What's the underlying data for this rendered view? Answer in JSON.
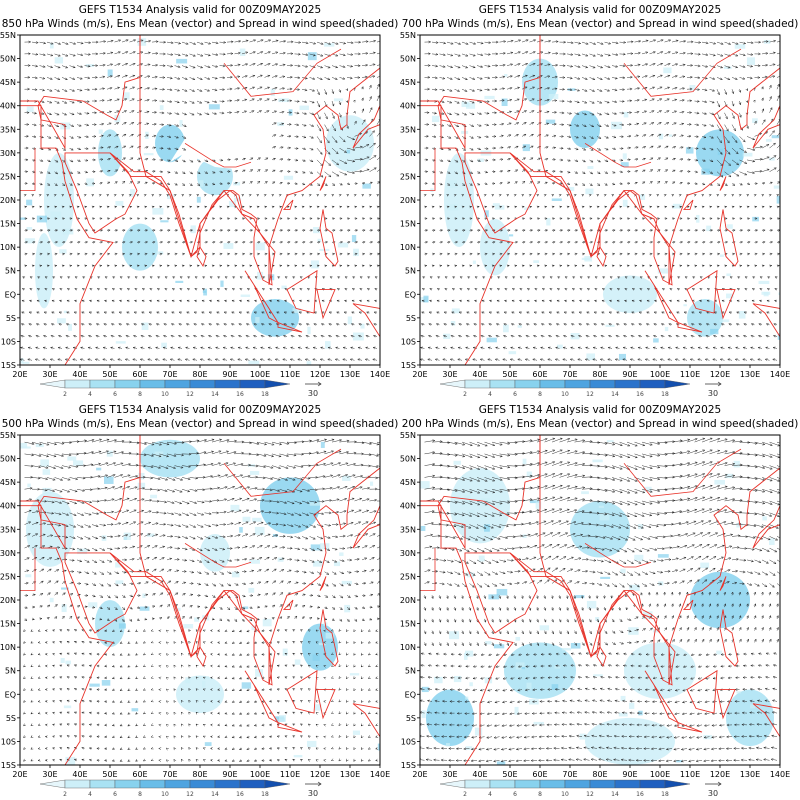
{
  "panels": [
    {
      "title1": "GEFS T1534 Analysis valid for 00Z09MAY2025",
      "title2": "850 hPa Winds (m/s), Ens Mean (vector) and Spread in wind speed(shaded)"
    },
    {
      "title1": "GEFS T1534 Analysis valid for 00Z09MAY2025",
      "title2": "700 hPa Winds (m/s), Ens Mean (vector) and Spread in wind speed(shaded)"
    },
    {
      "title1": "GEFS T1534 Analysis valid for 00Z09MAY2025",
      "title2": "500 hPa Winds (m/s), Ens Mean (vector) and Spread in wind speed(shaded)"
    },
    {
      "title1": "GEFS T1534 Analysis valid for 00Z09MAY2025",
      "title2": "200 hPa Winds (m/s), Ens Mean (vector) and Spread in wind speed(shaded)"
    }
  ],
  "axes": {
    "lon_labels": [
      "20E",
      "30E",
      "40E",
      "50E",
      "60E",
      "70E",
      "80E",
      "90E",
      "100E",
      "110E",
      "120E",
      "130E",
      "140E"
    ],
    "lat_labels": [
      "55N",
      "50N",
      "45N",
      "40N",
      "35N",
      "30N",
      "25N",
      "20N",
      "15N",
      "10N",
      "5N",
      "EQ",
      "5S",
      "10S",
      "15S"
    ]
  },
  "colorbar": {
    "labels": [
      "2",
      "4",
      "6",
      "8",
      "10",
      "12",
      "14",
      "16",
      "18"
    ],
    "colors": [
      "#e6f6fb",
      "#cdeff8",
      "#a9e2f3",
      "#88d2ee",
      "#69bde8",
      "#4ea4e0",
      "#3a8bd6",
      "#2b73cb",
      "#1f5fbf",
      "#134fae"
    ]
  },
  "reference_vector": "30",
  "colors": {
    "coast": "#e8332a",
    "land_mask": "#ffffff",
    "vector": "#1a1a1a"
  }
}
